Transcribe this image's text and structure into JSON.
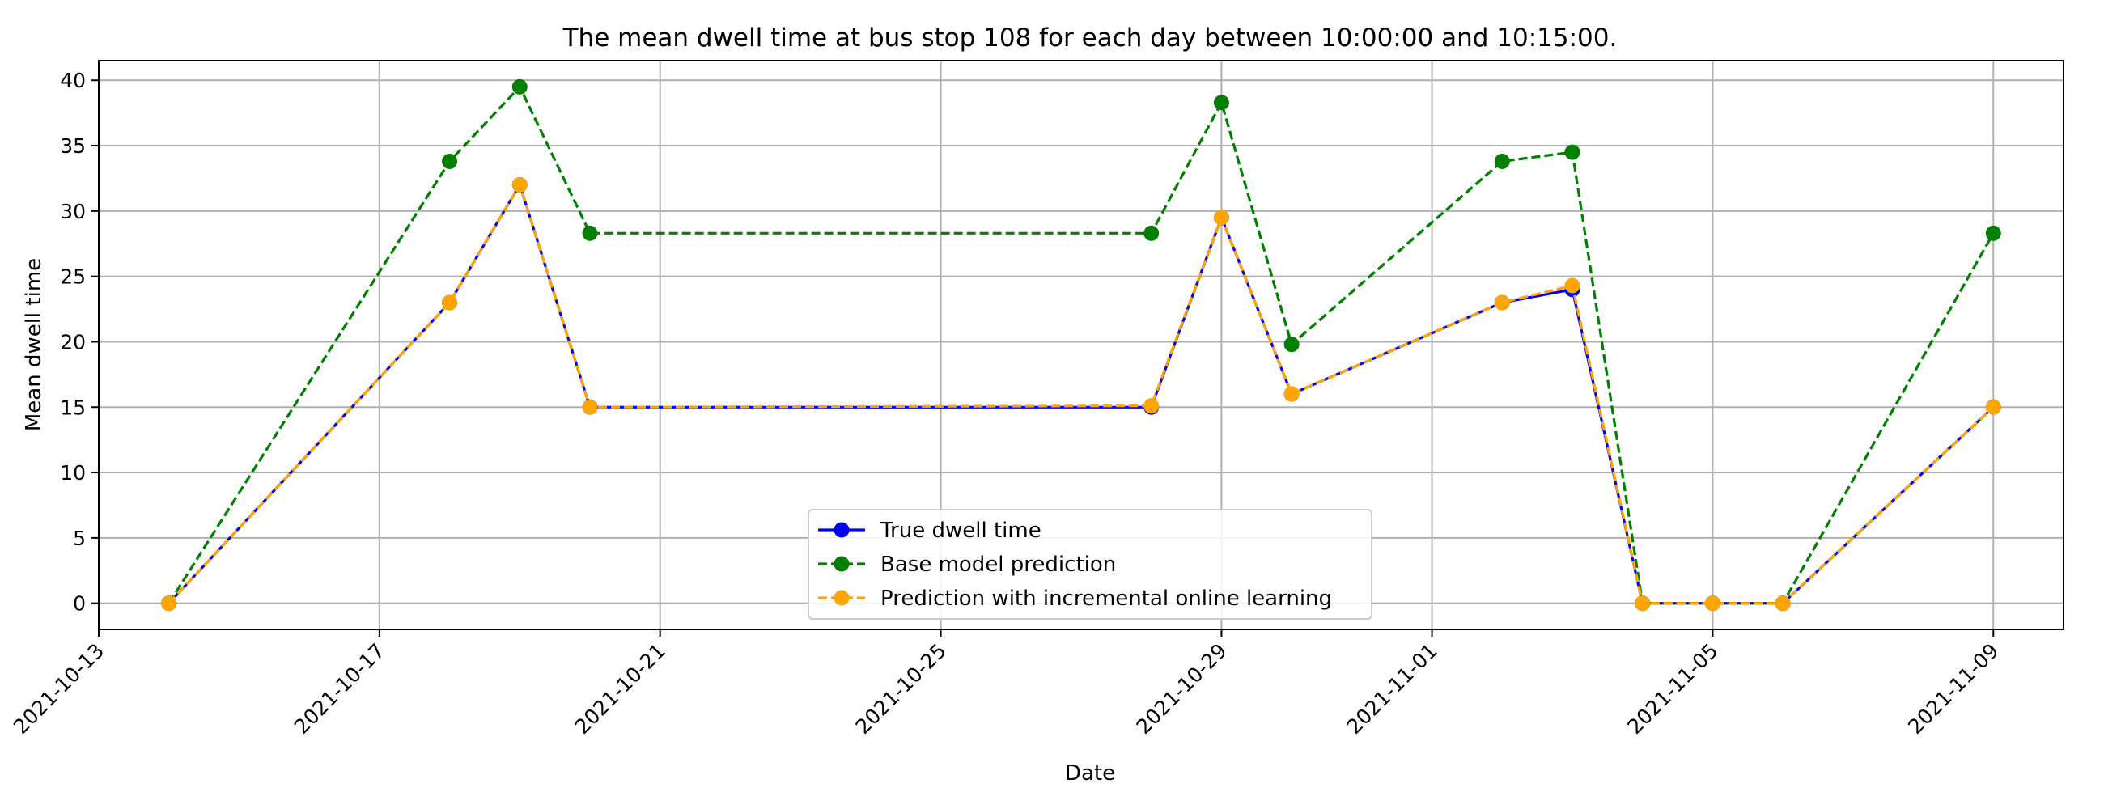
{
  "chart_data": {
    "type": "line",
    "title": "The mean dwell time at bus stop 108 for each day between 10:00:00 and 10:15:00.",
    "xlabel": "Date",
    "ylabel": "Mean dwell time",
    "x": [
      "2021-10-14",
      "2021-10-18",
      "2021-10-19",
      "2021-10-20",
      "2021-10-28",
      "2021-10-29",
      "2021-10-30",
      "2021-11-02",
      "2021-11-03",
      "2021-11-04",
      "2021-11-05",
      "2021-11-06",
      "2021-11-09"
    ],
    "xticks": [
      "2021-10-13",
      "2021-10-17",
      "2021-10-21",
      "2021-10-25",
      "2021-10-29",
      "2021-11-01",
      "2021-11-05",
      "2021-11-09"
    ],
    "xlim": [
      "2021-10-13",
      "2021-11-10"
    ],
    "yticks": [
      0,
      5,
      10,
      15,
      20,
      25,
      30,
      35,
      40
    ],
    "ylim": [
      -2,
      41.5
    ],
    "grid": true,
    "legend_position": "lower center",
    "series": [
      {
        "name": "True dwell time",
        "color": "#0000ff",
        "style": "solid",
        "values": [
          0,
          23,
          32,
          15,
          15,
          29.5,
          16,
          23,
          24,
          0,
          0,
          0,
          15
        ]
      },
      {
        "name": "Base model prediction",
        "color": "#008000",
        "style": "dashed",
        "values": [
          0,
          33.8,
          39.5,
          28.3,
          28.3,
          38.3,
          19.8,
          33.8,
          34.5,
          0,
          0,
          0,
          28.3
        ]
      },
      {
        "name": "Prediction with incremental online learning",
        "color": "#ffa500",
        "style": "dashed",
        "values": [
          0,
          23,
          32,
          15,
          15.1,
          29.5,
          16,
          23,
          24.3,
          0,
          0,
          0,
          15
        ]
      }
    ]
  }
}
